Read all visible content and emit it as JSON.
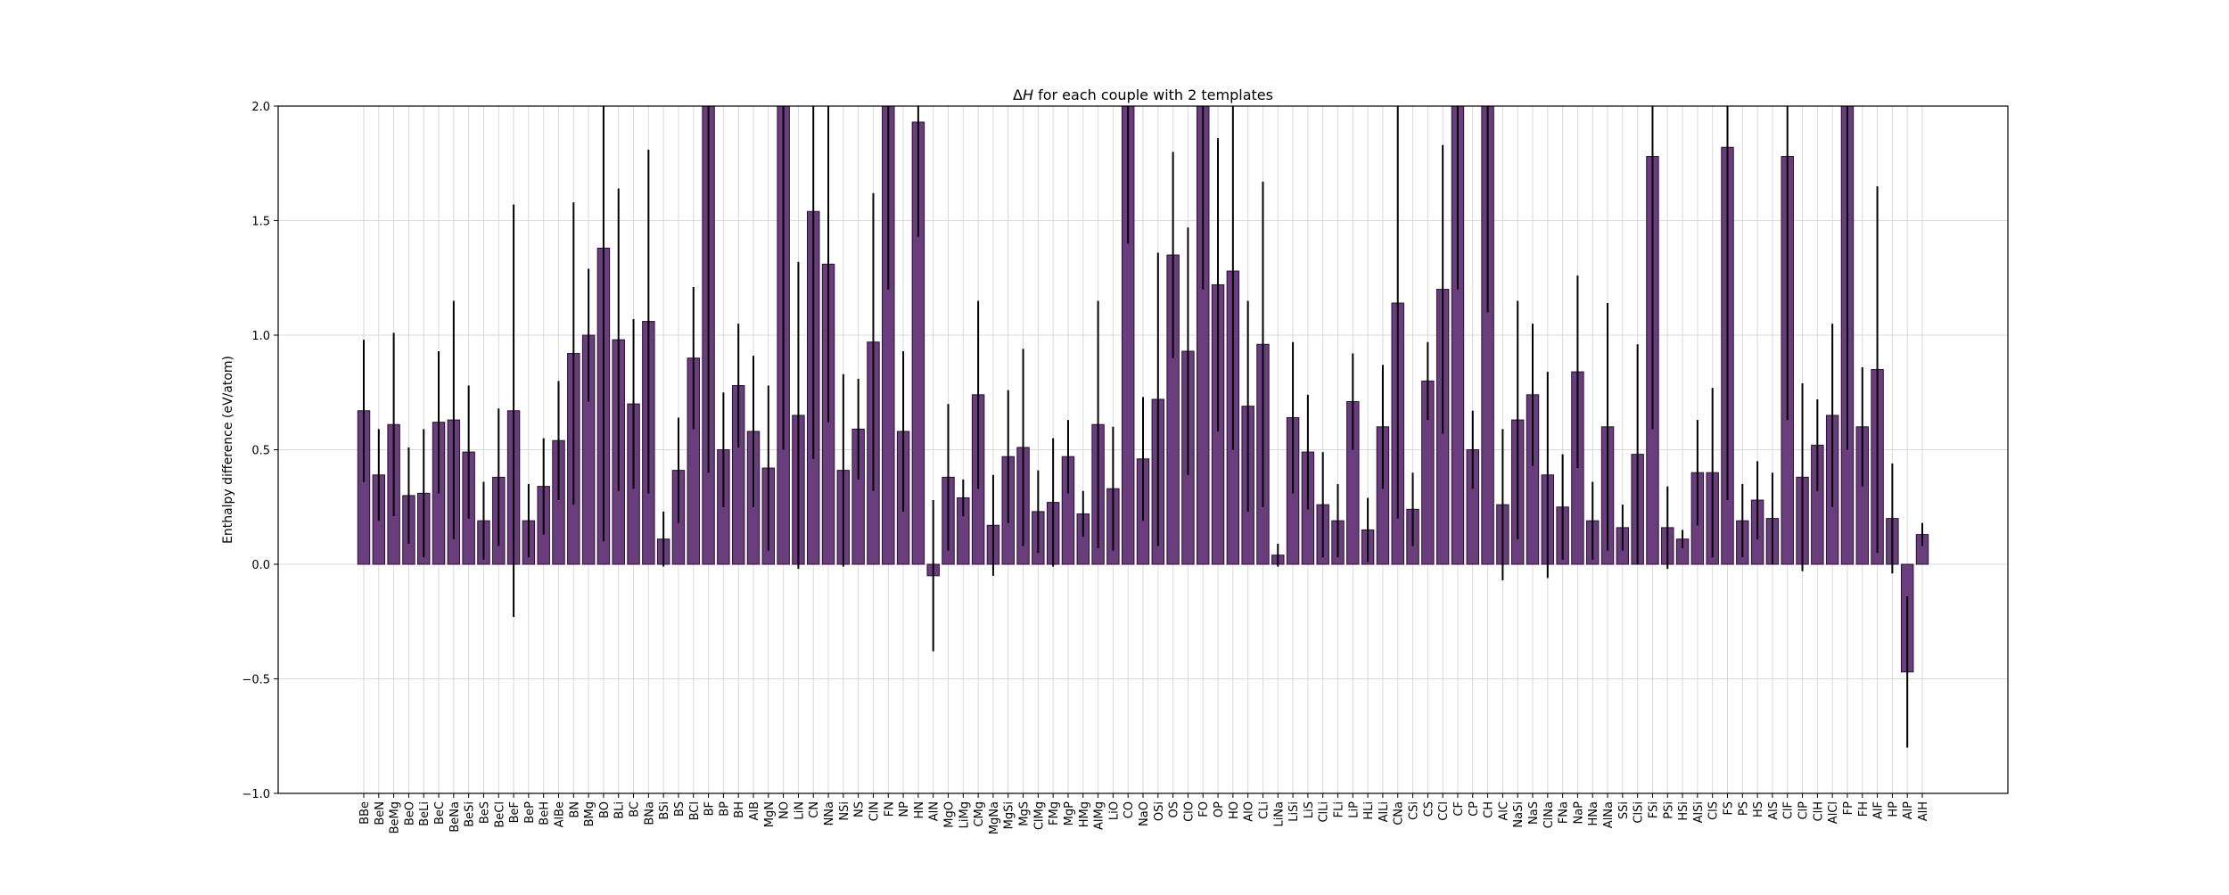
{
  "chart_data": {
    "type": "bar",
    "title": "ΔH for each couple with 2 templates",
    "title_parts": {
      "delta": "Δ",
      "symbol": "H",
      "rest": " for each couple with 2 templates"
    },
    "xlabel": "",
    "ylabel": "Enthalpy difference (eV/atom)",
    "ylim": [
      -1.0,
      2.0
    ],
    "yticks": [
      -1.0,
      -0.5,
      0.0,
      0.5,
      1.0,
      1.5,
      2.0
    ],
    "ytick_labels": [
      "−1.0",
      "−0.5",
      "0.0",
      "0.5",
      "1.0",
      "1.5",
      "2.0"
    ],
    "grid": true,
    "bar_color": "#6a3d7c",
    "edge_color": "#2b1033",
    "error_color": "#000000",
    "grid_color": "#d9d9d9",
    "categories": [
      "BBe",
      "BeN",
      "BeMg",
      "BeO",
      "BeLi",
      "BeC",
      "BeNa",
      "BeSi",
      "BeS",
      "BeCl",
      "BeF",
      "BeP",
      "BeH",
      "AlBe",
      "BN",
      "BMg",
      "BO",
      "BLi",
      "BC",
      "BNa",
      "BSi",
      "BS",
      "BCl",
      "BF",
      "BP",
      "BH",
      "AlB",
      "MgN",
      "NO",
      "LiN",
      "CN",
      "NNa",
      "NSi",
      "NS",
      "ClN",
      "FN",
      "NP",
      "HN",
      "AlN",
      "MgO",
      "LiMg",
      "CMg",
      "MgNa",
      "MgSi",
      "MgS",
      "ClMg",
      "FMg",
      "MgP",
      "HMg",
      "AlMg",
      "LiO",
      "CO",
      "NaO",
      "OSi",
      "OS",
      "ClO",
      "FO",
      "OP",
      "HO",
      "AlO",
      "CLi",
      "LiNa",
      "LiSi",
      "LiS",
      "ClLi",
      "FLi",
      "LiP",
      "HLi",
      "AlLi",
      "CNa",
      "CSi",
      "CS",
      "CCl",
      "CF",
      "CP",
      "CH",
      "AlC",
      "NaSi",
      "NaS",
      "ClNa",
      "FNa",
      "NaP",
      "HNa",
      "AlNa",
      "SSi",
      "ClSi",
      "FSi",
      "PSi",
      "HSi",
      "AlSi",
      "ClS",
      "FS",
      "PS",
      "HS",
      "AlS",
      "ClF",
      "ClP",
      "ClH",
      "AlCl",
      "FP",
      "FH",
      "AlF",
      "HP",
      "AlP",
      "AlH"
    ],
    "values": [
      0.67,
      0.39,
      0.61,
      0.3,
      0.31,
      0.62,
      0.63,
      0.49,
      0.19,
      0.38,
      0.67,
      0.19,
      0.34,
      0.54,
      0.92,
      1.0,
      1.38,
      0.98,
      0.7,
      1.06,
      0.11,
      0.41,
      0.9,
      2.0,
      0.5,
      0.78,
      0.58,
      0.42,
      2.0,
      0.65,
      1.54,
      1.31,
      0.41,
      0.59,
      0.97,
      2.0,
      0.58,
      1.93,
      -0.05,
      0.38,
      0.29,
      0.74,
      0.17,
      0.47,
      0.51,
      0.23,
      0.27,
      0.47,
      0.22,
      0.61,
      0.33,
      2.0,
      0.46,
      0.72,
      1.35,
      0.93,
      2.0,
      1.22,
      1.28,
      0.69,
      0.96,
      0.04,
      0.64,
      0.49,
      0.26,
      0.19,
      0.71,
      0.15,
      0.6,
      1.14,
      0.24,
      0.8,
      1.2,
      2.0,
      0.5,
      2.0,
      0.26,
      0.63,
      0.74,
      0.39,
      0.25,
      0.84,
      0.19,
      0.6,
      0.16,
      0.48,
      1.78,
      0.16,
      0.11,
      0.4,
      0.4,
      1.82,
      0.19,
      0.28,
      0.2,
      1.78,
      0.38,
      0.52,
      0.65,
      2.0,
      0.6,
      0.85,
      0.2,
      -0.47,
      0.13
    ],
    "errors": [
      0.31,
      0.2,
      0.4,
      0.21,
      0.28,
      0.31,
      0.52,
      0.29,
      0.17,
      0.3,
      0.9,
      0.16,
      0.21,
      0.26,
      0.66,
      0.29,
      1.28,
      0.66,
      0.37,
      0.75,
      0.12,
      0.23,
      0.31,
      1.6,
      0.25,
      0.27,
      0.33,
      0.36,
      1.5,
      0.67,
      1.08,
      0.69,
      0.42,
      0.22,
      0.65,
      0.8,
      0.35,
      0.5,
      0.33,
      0.32,
      0.08,
      0.41,
      0.22,
      0.29,
      0.43,
      0.18,
      0.28,
      0.16,
      0.1,
      0.54,
      0.27,
      0.6,
      0.27,
      0.64,
      0.45,
      0.54,
      0.8,
      0.64,
      0.78,
      0.46,
      0.71,
      0.05,
      0.33,
      0.25,
      0.23,
      0.16,
      0.21,
      0.14,
      0.27,
      0.94,
      0.16,
      0.17,
      0.63,
      0.8,
      0.17,
      0.9,
      0.33,
      0.52,
      0.31,
      0.45,
      0.23,
      0.42,
      0.17,
      0.54,
      0.1,
      0.48,
      1.19,
      0.18,
      0.04,
      0.23,
      0.37,
      1.54,
      0.16,
      0.17,
      0.2,
      1.15,
      0.41,
      0.2,
      0.4,
      1.5,
      0.26,
      0.8,
      0.24,
      0.33,
      0.05
    ]
  }
}
